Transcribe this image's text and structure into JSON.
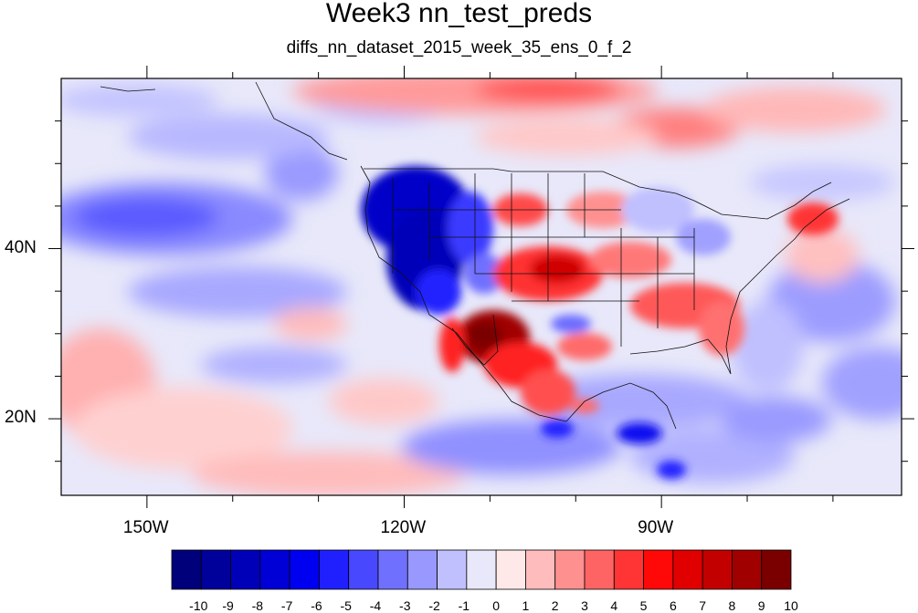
{
  "title": "Week3 nn_test_preds",
  "subtitle": "diffs_nn_dataset_2015_week_35_ens_0_f_2",
  "map": {
    "lon_range": [
      -160,
      -62
    ],
    "lat_range": [
      11,
      60
    ],
    "x_ticks": [
      {
        "value": -150,
        "label": "150W"
      },
      {
        "value": -120,
        "label": "120W"
      },
      {
        "value": -90,
        "label": "90W"
      }
    ],
    "y_ticks": [
      {
        "value": 40,
        "label": "40N"
      },
      {
        "value": 20,
        "label": "20N"
      }
    ]
  },
  "colorbar": {
    "labels": [
      "-10",
      "-9",
      "-8",
      "-7",
      "-6",
      "-5",
      "-4",
      "-3",
      "-2",
      "-1",
      "0",
      "1",
      "2",
      "3",
      "4",
      "5",
      "6",
      "7",
      "8",
      "9",
      "10"
    ],
    "colors": [
      "#00007a",
      "#00009a",
      "#0000b8",
      "#0000d6",
      "#0000f0",
      "#2020ff",
      "#4848ff",
      "#7070ff",
      "#9898ff",
      "#c0c0ff",
      "#e8e8fa",
      "#ffe8e8",
      "#ffbcbc",
      "#ff9090",
      "#ff6464",
      "#ff3434",
      "#ff0808",
      "#e00000",
      "#c20000",
      "#a00000",
      "#7a0000"
    ]
  }
}
